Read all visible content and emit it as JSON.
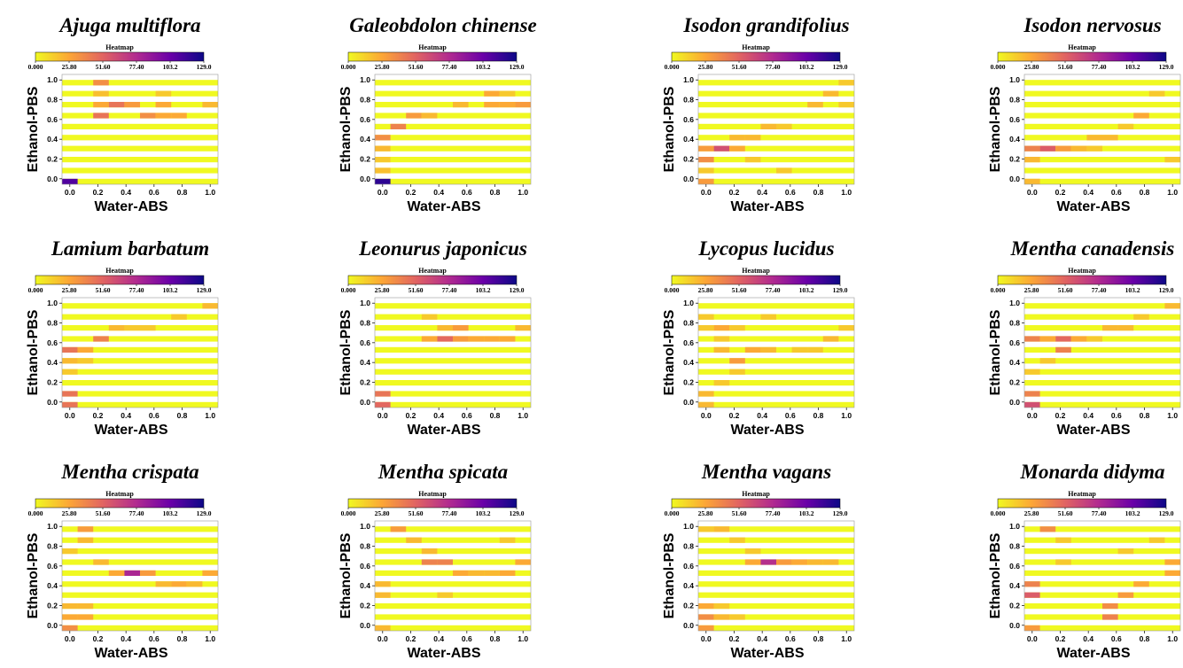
{
  "colorbar": {
    "label": "Heatmap",
    "ticks": [
      "0.000",
      "25.80",
      "51.60",
      "77.40",
      "103.2",
      "129.0"
    ],
    "range": [
      0,
      129
    ],
    "colormap": "plasma_r",
    "colors": [
      "#f0f921",
      "#fca636",
      "#e16462",
      "#b12a90",
      "#6a00a8",
      "#0d0887"
    ]
  },
  "chart_data": [
    {
      "type": "heatmap",
      "title": "Ajuga multiflora",
      "xlabel": "Water-ABS",
      "ylabel": "Ethanol-PBS",
      "x_ticks": [
        "0.0",
        "0.2",
        "0.4",
        "0.6",
        "0.8",
        "1.0"
      ],
      "y_ticks": [
        "0.0",
        "0.2",
        "0.4",
        "0.6",
        "0.8",
        "1.0"
      ],
      "bins": 10,
      "range": [
        0,
        129
      ],
      "cells": [
        [
          0,
          0,
          110
        ],
        [
          2,
          9,
          35
        ],
        [
          2,
          8,
          18
        ],
        [
          2,
          7,
          25
        ],
        [
          3,
          7,
          45
        ],
        [
          4,
          7,
          30
        ],
        [
          6,
          7,
          25
        ],
        [
          9,
          7,
          20
        ],
        [
          2,
          6,
          45
        ],
        [
          5,
          6,
          35
        ],
        [
          6,
          6,
          25
        ],
        [
          7,
          6,
          25
        ],
        [
          6,
          8,
          15
        ]
      ]
    },
    {
      "type": "heatmap",
      "title": "Galeobdolon  chinense",
      "xlabel": "Water-ABS",
      "ylabel": "Ethanol-PBS",
      "x_ticks": [
        "0.0",
        "0.2",
        "0.4",
        "0.6",
        "0.8",
        "1.0"
      ],
      "y_ticks": [
        "0.0",
        "0.2",
        "0.4",
        "0.6",
        "0.8",
        "1.0"
      ],
      "bins": 10,
      "range": [
        0,
        129
      ],
      "cells": [
        [
          0,
          0,
          120
        ],
        [
          0,
          1,
          18
        ],
        [
          0,
          2,
          15
        ],
        [
          0,
          3,
          20
        ],
        [
          0,
          4,
          35
        ],
        [
          1,
          5,
          40
        ],
        [
          2,
          6,
          30
        ],
        [
          3,
          6,
          20
        ],
        [
          5,
          7,
          20
        ],
        [
          7,
          7,
          25
        ],
        [
          8,
          7,
          25
        ],
        [
          9,
          7,
          30
        ],
        [
          7,
          8,
          25
        ],
        [
          8,
          8,
          15
        ]
      ]
    },
    {
      "type": "heatmap",
      "title": "Isodon grandifolius",
      "xlabel": "Water-ABS",
      "ylabel": "Ethanol-PBS",
      "x_ticks": [
        "0.0",
        "0.2",
        "0.4",
        "0.6",
        "0.8",
        "1.0"
      ],
      "y_ticks": [
        "0.0",
        "0.2",
        "0.4",
        "0.6",
        "0.8",
        "1.0"
      ],
      "bins": 10,
      "range": [
        0,
        129
      ],
      "cells": [
        [
          0,
          0,
          30
        ],
        [
          0,
          1,
          15
        ],
        [
          0,
          2,
          35
        ],
        [
          0,
          3,
          30
        ],
        [
          1,
          3,
          60
        ],
        [
          2,
          3,
          25
        ],
        [
          2,
          4,
          20
        ],
        [
          3,
          4,
          20
        ],
        [
          4,
          5,
          20
        ],
        [
          5,
          5,
          15
        ],
        [
          5,
          1,
          15
        ],
        [
          7,
          7,
          20
        ],
        [
          9,
          7,
          15
        ],
        [
          8,
          8,
          20
        ],
        [
          9,
          9,
          15
        ],
        [
          3,
          2,
          15
        ]
      ]
    },
    {
      "type": "heatmap",
      "title": "Isodon nervosus",
      "xlabel": "Water-ABS",
      "ylabel": "Ethanol-PBS",
      "x_ticks": [
        "0.0",
        "0.2",
        "0.4",
        "0.6",
        "0.8",
        "1.0"
      ],
      "y_ticks": [
        "0.0",
        "0.2",
        "0.4",
        "0.6",
        "0.8",
        "1.0"
      ],
      "bins": 10,
      "range": [
        0,
        129
      ],
      "cells": [
        [
          0,
          0,
          20
        ],
        [
          0,
          2,
          20
        ],
        [
          0,
          3,
          40
        ],
        [
          1,
          3,
          55
        ],
        [
          2,
          3,
          30
        ],
        [
          3,
          3,
          20
        ],
        [
          4,
          3,
          15
        ],
        [
          4,
          4,
          20
        ],
        [
          5,
          4,
          20
        ],
        [
          6,
          5,
          15
        ],
        [
          7,
          6,
          25
        ],
        [
          9,
          2,
          15
        ],
        [
          8,
          8,
          15
        ]
      ]
    },
    {
      "type": "heatmap",
      "title": "Lamium barbatum",
      "xlabel": "Water-ABS",
      "ylabel": "Ethanol-PBS",
      "x_ticks": [
        "0.0",
        "0.2",
        "0.4",
        "0.6",
        "0.8",
        "1.0"
      ],
      "y_ticks": [
        "0.0",
        "0.2",
        "0.4",
        "0.6",
        "0.8",
        "1.0"
      ],
      "bins": 10,
      "range": [
        0,
        129
      ],
      "cells": [
        [
          0,
          0,
          45
        ],
        [
          0,
          1,
          45
        ],
        [
          0,
          3,
          15
        ],
        [
          0,
          4,
          20
        ],
        [
          0,
          5,
          45
        ],
        [
          1,
          5,
          25
        ],
        [
          2,
          6,
          40
        ],
        [
          3,
          7,
          20
        ],
        [
          4,
          7,
          15
        ],
        [
          5,
          7,
          15
        ],
        [
          7,
          8,
          15
        ],
        [
          9,
          9,
          20
        ],
        [
          1,
          4,
          15
        ]
      ]
    },
    {
      "type": "heatmap",
      "title": "Leonurus japonicus",
      "xlabel": "Water-ABS",
      "ylabel": "Ethanol-PBS",
      "x_ticks": [
        "0.0",
        "0.2",
        "0.4",
        "0.6",
        "0.8",
        "1.0"
      ],
      "y_ticks": [
        "0.0",
        "0.2",
        "0.4",
        "0.6",
        "0.8",
        "1.0"
      ],
      "bins": 10,
      "range": [
        0,
        129
      ],
      "cells": [
        [
          0,
          0,
          50
        ],
        [
          0,
          1,
          45
        ],
        [
          3,
          6,
          25
        ],
        [
          4,
          6,
          50
        ],
        [
          5,
          6,
          30
        ],
        [
          6,
          6,
          25
        ],
        [
          7,
          6,
          25
        ],
        [
          8,
          6,
          25
        ],
        [
          5,
          7,
          30
        ],
        [
          4,
          7,
          20
        ],
        [
          9,
          7,
          20
        ],
        [
          3,
          8,
          15
        ]
      ]
    },
    {
      "type": "heatmap",
      "title": "Lycopus lucidus",
      "xlabel": "Water-ABS",
      "ylabel": "Ethanol-PBS",
      "x_ticks": [
        "0.0",
        "0.2",
        "0.4",
        "0.6",
        "0.8",
        "1.0"
      ],
      "y_ticks": [
        "0.0",
        "0.2",
        "0.4",
        "0.6",
        "0.8",
        "1.0"
      ],
      "bins": 10,
      "range": [
        0,
        129
      ],
      "cells": [
        [
          0,
          0,
          20
        ],
        [
          0,
          1,
          20
        ],
        [
          1,
          2,
          15
        ],
        [
          2,
          3,
          15
        ],
        [
          2,
          4,
          30
        ],
        [
          3,
          5,
          25
        ],
        [
          4,
          5,
          20
        ],
        [
          1,
          5,
          20
        ],
        [
          1,
          6,
          15
        ],
        [
          1,
          7,
          25
        ],
        [
          0,
          7,
          15
        ],
        [
          8,
          6,
          20
        ],
        [
          6,
          5,
          15
        ],
        [
          9,
          7,
          15
        ],
        [
          2,
          7,
          15
        ],
        [
          7,
          5,
          15
        ],
        [
          4,
          8,
          15
        ],
        [
          0,
          8,
          15
        ]
      ]
    },
    {
      "type": "heatmap",
      "title": "Mentha canadensis",
      "xlabel": "Water-ABS",
      "ylabel": "Ethanol-PBS",
      "x_ticks": [
        "0.0",
        "0.2",
        "0.4",
        "0.6",
        "0.8",
        "1.0"
      ],
      "y_ticks": [
        "0.0",
        "0.2",
        "0.4",
        "0.6",
        "0.8",
        "1.0"
      ],
      "bins": 10,
      "range": [
        0,
        129
      ],
      "cells": [
        [
          0,
          0,
          60
        ],
        [
          0,
          1,
          40
        ],
        [
          0,
          6,
          40
        ],
        [
          1,
          6,
          25
        ],
        [
          2,
          6,
          50
        ],
        [
          3,
          6,
          25
        ],
        [
          2,
          5,
          40
        ],
        [
          4,
          6,
          15
        ],
        [
          5,
          7,
          20
        ],
        [
          6,
          7,
          20
        ],
        [
          7,
          8,
          15
        ],
        [
          9,
          9,
          20
        ],
        [
          0,
          3,
          15
        ],
        [
          1,
          4,
          15
        ]
      ]
    },
    {
      "type": "heatmap",
      "title": "Mentha crispata",
      "xlabel": "Water-ABS",
      "ylabel": "Ethanol-PBS",
      "x_ticks": [
        "0.0",
        "0.2",
        "0.4",
        "0.6",
        "0.8",
        "1.0"
      ],
      "y_ticks": [
        "0.0",
        "0.2",
        "0.4",
        "0.6",
        "0.8",
        "1.0"
      ],
      "bins": 10,
      "range": [
        0,
        129
      ],
      "cells": [
        [
          0,
          0,
          35
        ],
        [
          0,
          1,
          25
        ],
        [
          1,
          1,
          25
        ],
        [
          0,
          2,
          20
        ],
        [
          1,
          2,
          20
        ],
        [
          3,
          5,
          25
        ],
        [
          4,
          5,
          80
        ],
        [
          5,
          5,
          30
        ],
        [
          6,
          4,
          20
        ],
        [
          7,
          4,
          25
        ],
        [
          8,
          4,
          20
        ],
        [
          9,
          5,
          25
        ],
        [
          2,
          6,
          20
        ],
        [
          1,
          8,
          20
        ],
        [
          1,
          9,
          30
        ],
        [
          0,
          7,
          15
        ]
      ]
    },
    {
      "type": "heatmap",
      "title": "Mentha spicata",
      "xlabel": "Water-ABS",
      "ylabel": "Ethanol-PBS",
      "x_ticks": [
        "0.0",
        "0.2",
        "0.4",
        "0.6",
        "0.8",
        "1.0"
      ],
      "y_ticks": [
        "0.0",
        "0.2",
        "0.4",
        "0.6",
        "0.8",
        "1.0"
      ],
      "bins": 10,
      "range": [
        0,
        129
      ],
      "cells": [
        [
          0,
          0,
          20
        ],
        [
          0,
          3,
          20
        ],
        [
          0,
          4,
          20
        ],
        [
          1,
          9,
          30
        ],
        [
          2,
          8,
          20
        ],
        [
          3,
          7,
          20
        ],
        [
          3,
          6,
          40
        ],
        [
          4,
          6,
          40
        ],
        [
          5,
          5,
          25
        ],
        [
          6,
          5,
          20
        ],
        [
          7,
          5,
          20
        ],
        [
          8,
          5,
          25
        ],
        [
          9,
          6,
          25
        ],
        [
          8,
          8,
          15
        ],
        [
          4,
          3,
          15
        ]
      ]
    },
    {
      "type": "heatmap",
      "title": "Mentha vagans",
      "xlabel": "Water-ABS",
      "ylabel": "Ethanol-PBS",
      "x_ticks": [
        "0.0",
        "0.2",
        "0.4",
        "0.6",
        "0.8",
        "1.0"
      ],
      "y_ticks": [
        "0.0",
        "0.2",
        "0.4",
        "0.6",
        "0.8",
        "1.0"
      ],
      "bins": 10,
      "range": [
        0,
        129
      ],
      "cells": [
        [
          0,
          0,
          30
        ],
        [
          0,
          1,
          35
        ],
        [
          1,
          1,
          20
        ],
        [
          2,
          1,
          15
        ],
        [
          0,
          2,
          25
        ],
        [
          1,
          2,
          15
        ],
        [
          2,
          8,
          15
        ],
        [
          1,
          9,
          20
        ],
        [
          0,
          9,
          15
        ],
        [
          3,
          6,
          25
        ],
        [
          4,
          6,
          75
        ],
        [
          5,
          6,
          30
        ],
        [
          6,
          6,
          25
        ],
        [
          7,
          6,
          20
        ],
        [
          8,
          6,
          20
        ],
        [
          3,
          7,
          15
        ]
      ]
    },
    {
      "type": "heatmap",
      "title": "Monarda didyma",
      "xlabel": "Water-ABS",
      "ylabel": "Ethanol-PBS",
      "x_ticks": [
        "0.0",
        "0.2",
        "0.4",
        "0.6",
        "0.8",
        "1.0"
      ],
      "y_ticks": [
        "0.0",
        "0.2",
        "0.4",
        "0.6",
        "0.8",
        "1.0"
      ],
      "bins": 10,
      "range": [
        0,
        129
      ],
      "cells": [
        [
          0,
          0,
          30
        ],
        [
          0,
          3,
          55
        ],
        [
          0,
          4,
          40
        ],
        [
          1,
          9,
          35
        ],
        [
          2,
          8,
          15
        ],
        [
          5,
          1,
          40
        ],
        [
          5,
          2,
          35
        ],
        [
          6,
          3,
          30
        ],
        [
          7,
          4,
          25
        ],
        [
          9,
          5,
          25
        ],
        [
          9,
          6,
          25
        ],
        [
          6,
          7,
          15
        ],
        [
          8,
          8,
          15
        ],
        [
          2,
          6,
          15
        ]
      ]
    }
  ]
}
